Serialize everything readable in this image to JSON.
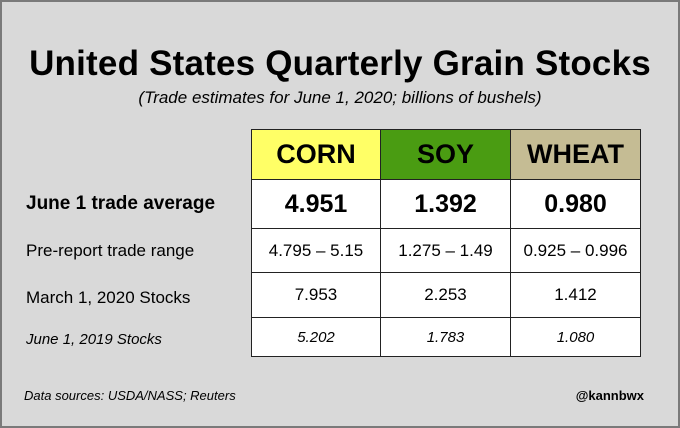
{
  "chart_data": {
    "type": "table",
    "title": "United States Quarterly Grain Stocks",
    "subtitle": "(Trade estimates for June 1, 2020; billions of bushels)",
    "columns": [
      {
        "label": "CORN",
        "color": "#ffff66"
      },
      {
        "label": "SOY",
        "color": "#4a9c12"
      },
      {
        "label": "WHEAT",
        "color": "#c5bc94"
      }
    ],
    "rows": [
      {
        "label": "June 1 trade average",
        "values": [
          "4.951",
          "1.392",
          "0.980"
        ]
      },
      {
        "label": "Pre-report trade range",
        "values": [
          "4.795 – 5.15",
          "1.275 – 1.49",
          "0.925 – 0.996"
        ]
      },
      {
        "label": "March 1, 2020 Stocks",
        "values": [
          "7.953",
          "2.253",
          "1.412"
        ]
      },
      {
        "label": "June 1, 2019 Stocks",
        "values": [
          "5.202",
          "1.783",
          "1.080"
        ]
      }
    ],
    "source": "Data sources: USDA/NASS; Reuters",
    "handle": "@kannbwx"
  }
}
